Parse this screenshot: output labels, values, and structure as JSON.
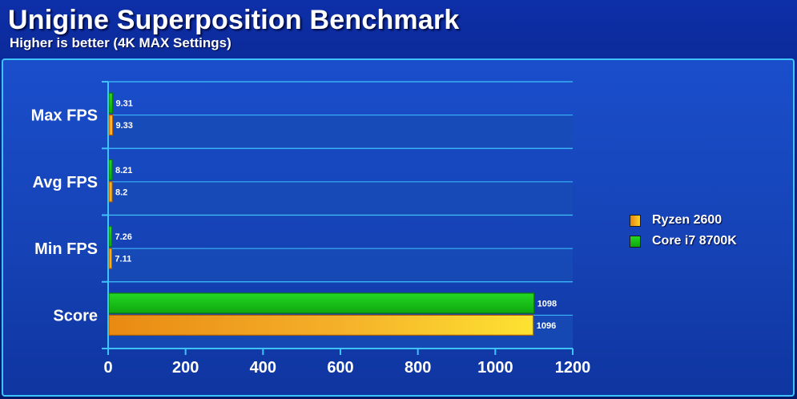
{
  "header": {
    "title": "Unigine Superposition Benchmark",
    "subtitle": "Higher is better (4K MAX Settings)"
  },
  "colors": {
    "ryzen": "#f2a321",
    "intel": "#19c619",
    "grid": "#3fc3ff"
  },
  "chart_data": {
    "type": "bar",
    "orientation": "horizontal",
    "title": "Unigine Superposition Benchmark",
    "subtitle": "Higher is better (4K MAX Settings)",
    "categories": [
      "Max FPS",
      "Avg FPS",
      "Min FPS",
      "Score"
    ],
    "series": [
      {
        "name": "Core i7 8700K",
        "values": [
          9.31,
          8.21,
          7.26,
          1098
        ],
        "labels": [
          "9.31",
          "8.21",
          "7.26",
          "1098"
        ]
      },
      {
        "name": "Ryzen 2600",
        "values": [
          9.33,
          8.2,
          7.11,
          1096
        ],
        "labels": [
          "9.33",
          "8.2",
          "7.11",
          "1096"
        ]
      }
    ],
    "legend": [
      "Ryzen 2600",
      "Core i7 8700K"
    ],
    "xlim": [
      0,
      1200
    ],
    "xticks": [
      "0",
      "200",
      "400",
      "600",
      "800",
      "1000",
      "1200"
    ],
    "grid": true,
    "legend_position": "right"
  }
}
